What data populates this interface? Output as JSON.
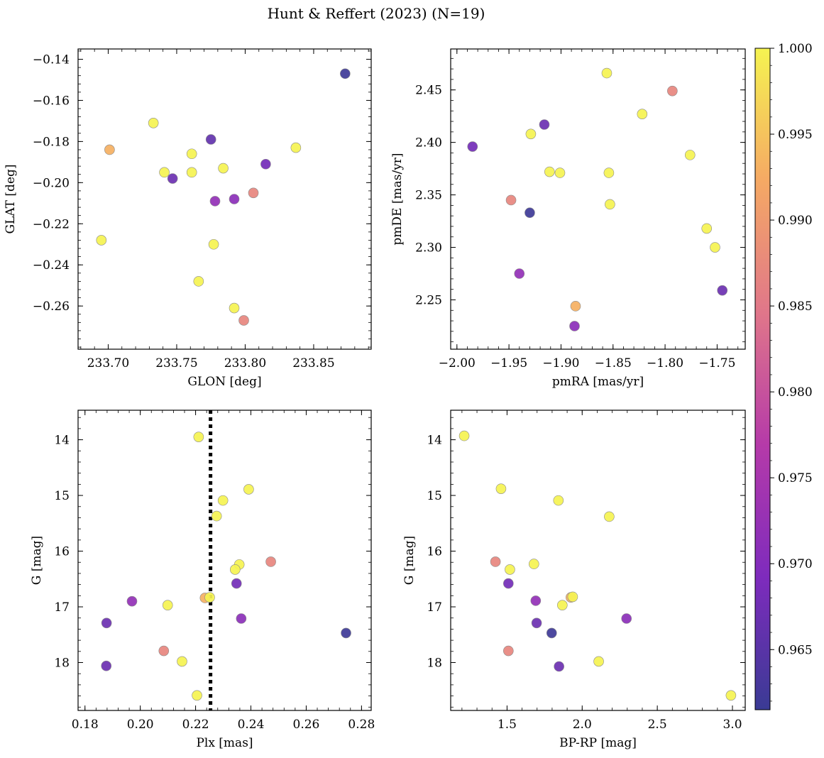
{
  "title": "Hunt & Reffert (2023) (N=19)",
  "chart_data": [
    {
      "type": "scatter",
      "xlabel": "GLON [deg]",
      "ylabel": "GLAT [deg]",
      "xlim": [
        233.678,
        233.892
      ],
      "ylim": [
        -0.281,
        -0.135
      ],
      "xticks": [
        233.7,
        233.75,
        233.8,
        233.85
      ],
      "xtick_labels": [
        "233.70",
        "233.75",
        "233.80",
        "233.85"
      ],
      "yticks": [
        -0.14,
        -0.16,
        -0.18,
        -0.2,
        -0.22,
        -0.24,
        -0.26
      ],
      "ytick_labels": [
        "−0.14",
        "−0.16",
        "−0.18",
        "−0.20",
        "−0.22",
        "−0.24",
        "−0.26"
      ],
      "points": [
        {
          "x": 233.873,
          "y": -0.147,
          "c": 0.962
        },
        {
          "x": 233.733,
          "y": -0.171,
          "c": 1.0
        },
        {
          "x": 233.701,
          "y": -0.184,
          "c": 0.993
        },
        {
          "x": 233.775,
          "y": -0.179,
          "c": 0.966
        },
        {
          "x": 233.837,
          "y": -0.183,
          "c": 1.0
        },
        {
          "x": 233.761,
          "y": -0.186,
          "c": 1.0
        },
        {
          "x": 233.815,
          "y": -0.191,
          "c": 0.968
        },
        {
          "x": 233.784,
          "y": -0.193,
          "c": 1.0
        },
        {
          "x": 233.741,
          "y": -0.195,
          "c": 1.0
        },
        {
          "x": 233.761,
          "y": -0.195,
          "c": 1.0
        },
        {
          "x": 233.747,
          "y": -0.198,
          "c": 0.967
        },
        {
          "x": 233.806,
          "y": -0.205,
          "c": 0.987
        },
        {
          "x": 233.778,
          "y": -0.209,
          "c": 0.972
        },
        {
          "x": 233.792,
          "y": -0.208,
          "c": 0.971
        },
        {
          "x": 233.695,
          "y": -0.228,
          "c": 1.0
        },
        {
          "x": 233.777,
          "y": -0.23,
          "c": 1.0
        },
        {
          "x": 233.766,
          "y": -0.248,
          "c": 1.0
        },
        {
          "x": 233.792,
          "y": -0.261,
          "c": 1.0
        },
        {
          "x": 233.799,
          "y": -0.267,
          "c": 0.987
        }
      ]
    },
    {
      "type": "scatter",
      "xlabel": "pmRA [mas/yr]",
      "ylabel": "pmDE [mas/yr]",
      "xlim": [
        -2.006,
        -1.723
      ],
      "ylim": [
        2.203,
        2.489
      ],
      "xticks": [
        -2.0,
        -1.95,
        -1.9,
        -1.85,
        -1.8,
        -1.75
      ],
      "xtick_labels": [
        "−2.00",
        "−1.95",
        "−1.90",
        "−1.85",
        "−1.80",
        "−1.75"
      ],
      "yticks": [
        2.25,
        2.3,
        2.35,
        2.4,
        2.45
      ],
      "ytick_labels": [
        "2.25",
        "2.30",
        "2.35",
        "2.40",
        "2.45"
      ],
      "points": [
        {
          "x": -1.856,
          "y": 2.466,
          "c": 1.0
        },
        {
          "x": -1.793,
          "y": 2.449,
          "c": 0.987
        },
        {
          "x": -1.822,
          "y": 2.427,
          "c": 1.0
        },
        {
          "x": -1.916,
          "y": 2.417,
          "c": 0.967
        },
        {
          "x": -1.929,
          "y": 2.408,
          "c": 1.0
        },
        {
          "x": -1.985,
          "y": 2.396,
          "c": 0.968
        },
        {
          "x": -1.776,
          "y": 2.388,
          "c": 1.0
        },
        {
          "x": -1.911,
          "y": 2.372,
          "c": 1.0
        },
        {
          "x": -1.901,
          "y": 2.371,
          "c": 1.0
        },
        {
          "x": -1.854,
          "y": 2.371,
          "c": 1.0
        },
        {
          "x": -1.948,
          "y": 2.345,
          "c": 0.987
        },
        {
          "x": -1.853,
          "y": 2.341,
          "c": 1.0
        },
        {
          "x": -1.93,
          "y": 2.333,
          "c": 0.962
        },
        {
          "x": -1.76,
          "y": 2.318,
          "c": 1.0
        },
        {
          "x": -1.752,
          "y": 2.3,
          "c": 1.0
        },
        {
          "x": -1.94,
          "y": 2.275,
          "c": 0.972
        },
        {
          "x": -1.745,
          "y": 2.259,
          "c": 0.967
        },
        {
          "x": -1.886,
          "y": 2.244,
          "c": 0.993
        },
        {
          "x": -1.887,
          "y": 2.225,
          "c": 0.971
        }
      ]
    },
    {
      "type": "scatter",
      "xlabel": "Plx [mas]",
      "ylabel": "G [mag]",
      "xlim": [
        0.1775,
        0.2835
      ],
      "ylim": [
        18.86,
        13.47
      ],
      "y_inverted": true,
      "xticks": [
        0.18,
        0.2,
        0.22,
        0.24,
        0.26,
        0.28
      ],
      "xtick_labels": [
        "0.18",
        "0.20",
        "0.22",
        "0.24",
        "0.26",
        "0.28"
      ],
      "yticks": [
        14,
        15,
        16,
        17,
        18
      ],
      "ytick_labels": [
        "14",
        "15",
        "16",
        "17",
        "18"
      ],
      "vline": {
        "x": 0.2254,
        "style": "dotted",
        "color": "#000000"
      },
      "points": [
        {
          "x": 0.2211,
          "y": 13.95,
          "c": 1.0
        },
        {
          "x": 0.2392,
          "y": 14.89,
          "c": 1.0
        },
        {
          "x": 0.2299,
          "y": 15.09,
          "c": 1.0
        },
        {
          "x": 0.2276,
          "y": 15.37,
          "c": 1.0
        },
        {
          "x": 0.2472,
          "y": 16.19,
          "c": 0.987
        },
        {
          "x": 0.2358,
          "y": 16.24,
          "c": 1.0
        },
        {
          "x": 0.2343,
          "y": 16.33,
          "c": 1.0
        },
        {
          "x": 0.2348,
          "y": 16.58,
          "c": 0.968
        },
        {
          "x": 0.2234,
          "y": 16.84,
          "c": 0.993
        },
        {
          "x": 0.2251,
          "y": 16.83,
          "c": 1.0
        },
        {
          "x": 0.197,
          "y": 16.9,
          "c": 0.972
        },
        {
          "x": 0.2099,
          "y": 16.97,
          "c": 1.0
        },
        {
          "x": 0.2365,
          "y": 17.21,
          "c": 0.971
        },
        {
          "x": 0.1878,
          "y": 17.29,
          "c": 0.967
        },
        {
          "x": 0.2744,
          "y": 17.47,
          "c": 0.962
        },
        {
          "x": 0.2085,
          "y": 17.79,
          "c": 0.987
        },
        {
          "x": 0.2151,
          "y": 17.98,
          "c": 1.0
        },
        {
          "x": 0.1877,
          "y": 18.06,
          "c": 0.967
        },
        {
          "x": 0.2205,
          "y": 18.59,
          "c": 1.0
        }
      ]
    },
    {
      "type": "scatter",
      "xlabel": "BP-RP [mag]",
      "ylabel": "G [mag]",
      "xlim": [
        1.125,
        3.085
      ],
      "ylim": [
        18.86,
        13.47
      ],
      "y_inverted": true,
      "xticks": [
        1.5,
        2.0,
        2.5,
        3.0
      ],
      "xtick_labels": [
        "1.5",
        "2.0",
        "2.5",
        "3.0"
      ],
      "yticks": [
        14,
        15,
        16,
        17,
        18
      ],
      "ytick_labels": [
        "14",
        "15",
        "16",
        "17",
        "18"
      ],
      "points": [
        {
          "x": 1.215,
          "y": 13.93,
          "c": 1.0
        },
        {
          "x": 1.46,
          "y": 14.88,
          "c": 1.0
        },
        {
          "x": 1.842,
          "y": 15.09,
          "c": 1.0
        },
        {
          "x": 2.18,
          "y": 15.38,
          "c": 1.0
        },
        {
          "x": 1.423,
          "y": 16.19,
          "c": 0.987
        },
        {
          "x": 1.679,
          "y": 16.23,
          "c": 1.0
        },
        {
          "x": 1.519,
          "y": 16.33,
          "c": 1.0
        },
        {
          "x": 1.509,
          "y": 16.58,
          "c": 0.968
        },
        {
          "x": 1.925,
          "y": 16.83,
          "c": 0.993
        },
        {
          "x": 1.937,
          "y": 16.82,
          "c": 1.0
        },
        {
          "x": 1.691,
          "y": 16.89,
          "c": 0.972
        },
        {
          "x": 1.868,
          "y": 16.97,
          "c": 1.0
        },
        {
          "x": 2.295,
          "y": 17.21,
          "c": 0.971
        },
        {
          "x": 1.697,
          "y": 17.29,
          "c": 0.967
        },
        {
          "x": 1.797,
          "y": 17.47,
          "c": 0.962
        },
        {
          "x": 1.509,
          "y": 17.79,
          "c": 0.987
        },
        {
          "x": 2.11,
          "y": 17.98,
          "c": 1.0
        },
        {
          "x": 1.846,
          "y": 18.07,
          "c": 0.967
        },
        {
          "x": 2.99,
          "y": 18.59,
          "c": 1.0
        }
      ]
    }
  ],
  "colorbar": {
    "colormap": "plasma",
    "range": [
      0.9615,
      1.0
    ],
    "ticks": [
      1.0,
      0.995,
      0.99,
      0.985,
      0.98,
      0.975,
      0.97,
      0.965
    ],
    "tick_labels": [
      "1.000",
      "0.995",
      "0.990",
      "0.985",
      "0.980",
      "0.975",
      "0.970",
      "0.965"
    ],
    "colors": [
      "#3a3b94",
      "#7e2bbd",
      "#b53aa9",
      "#e0768a",
      "#f5a964",
      "#f5f351"
    ]
  }
}
